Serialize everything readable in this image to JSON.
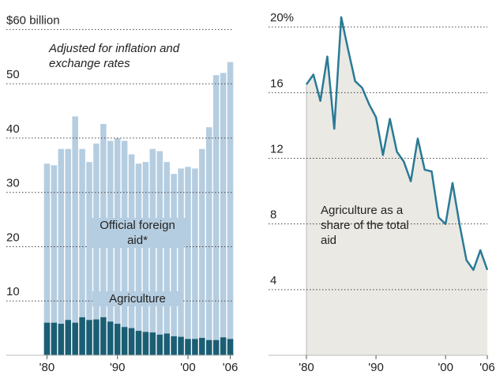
{
  "chart_data": [
    {
      "type": "bar",
      "annotation": "Adjusted for inflation and exchange rates",
      "categories": [
        "'80",
        null,
        null,
        null,
        null,
        null,
        null,
        null,
        null,
        null,
        "'90",
        null,
        null,
        null,
        null,
        null,
        null,
        null,
        null,
        null,
        "'00",
        null,
        null,
        null,
        null,
        null,
        "'06"
      ],
      "series": [
        {
          "name": "Official foreign aid*",
          "color": "#b5cde0",
          "values": [
            35.3,
            35,
            38,
            38,
            44,
            38,
            35.6,
            39,
            42.6,
            39.5,
            40,
            39.5,
            37,
            35.3,
            35.6,
            38,
            37.6,
            35.6,
            33.4,
            34.4,
            34.7,
            34.4,
            38,
            42,
            51.6,
            52,
            54
          ]
        },
        {
          "name": "Agriculture",
          "color": "#1b5e74",
          "values": [
            6,
            6,
            5.8,
            6.5,
            6,
            7,
            6.5,
            6.6,
            7,
            6.2,
            5.8,
            5.2,
            5,
            4.5,
            4.3,
            4.2,
            3.8,
            4,
            3.5,
            3.4,
            3,
            3,
            3.2,
            2.8,
            2.8,
            3.3,
            3
          ]
        }
      ],
      "ylim": [
        0,
        65
      ],
      "yticks": [
        10,
        20,
        30,
        40,
        50,
        {
          "value": 60,
          "label": "$60 billion"
        }
      ],
      "grid": true
    },
    {
      "type": "line",
      "annotation": "Agriculture as a share of the total aid",
      "categories": [
        "'80",
        null,
        null,
        null,
        null,
        null,
        null,
        null,
        null,
        null,
        "'90",
        null,
        null,
        null,
        null,
        null,
        null,
        null,
        null,
        null,
        "'00",
        null,
        null,
        null,
        null,
        null,
        "'06"
      ],
      "series": [
        {
          "name": "Agriculture share",
          "color": "#2a7a96",
          "values": [
            16.5,
            17.1,
            15.5,
            18.2,
            13.8,
            20.6,
            18.6,
            16.7,
            16.3,
            15.3,
            14.5,
            12.2,
            14.4,
            12.4,
            11.8,
            10.6,
            13.2,
            11.3,
            11.2,
            8.4,
            8,
            10.5,
            8,
            5.8,
            5.2,
            6.4,
            5.2
          ]
        }
      ],
      "ylim": [
        0,
        21.5
      ],
      "yticks": [
        4,
        8,
        12,
        16,
        {
          "value": 20,
          "label": "20%"
        }
      ],
      "grid": true
    }
  ]
}
